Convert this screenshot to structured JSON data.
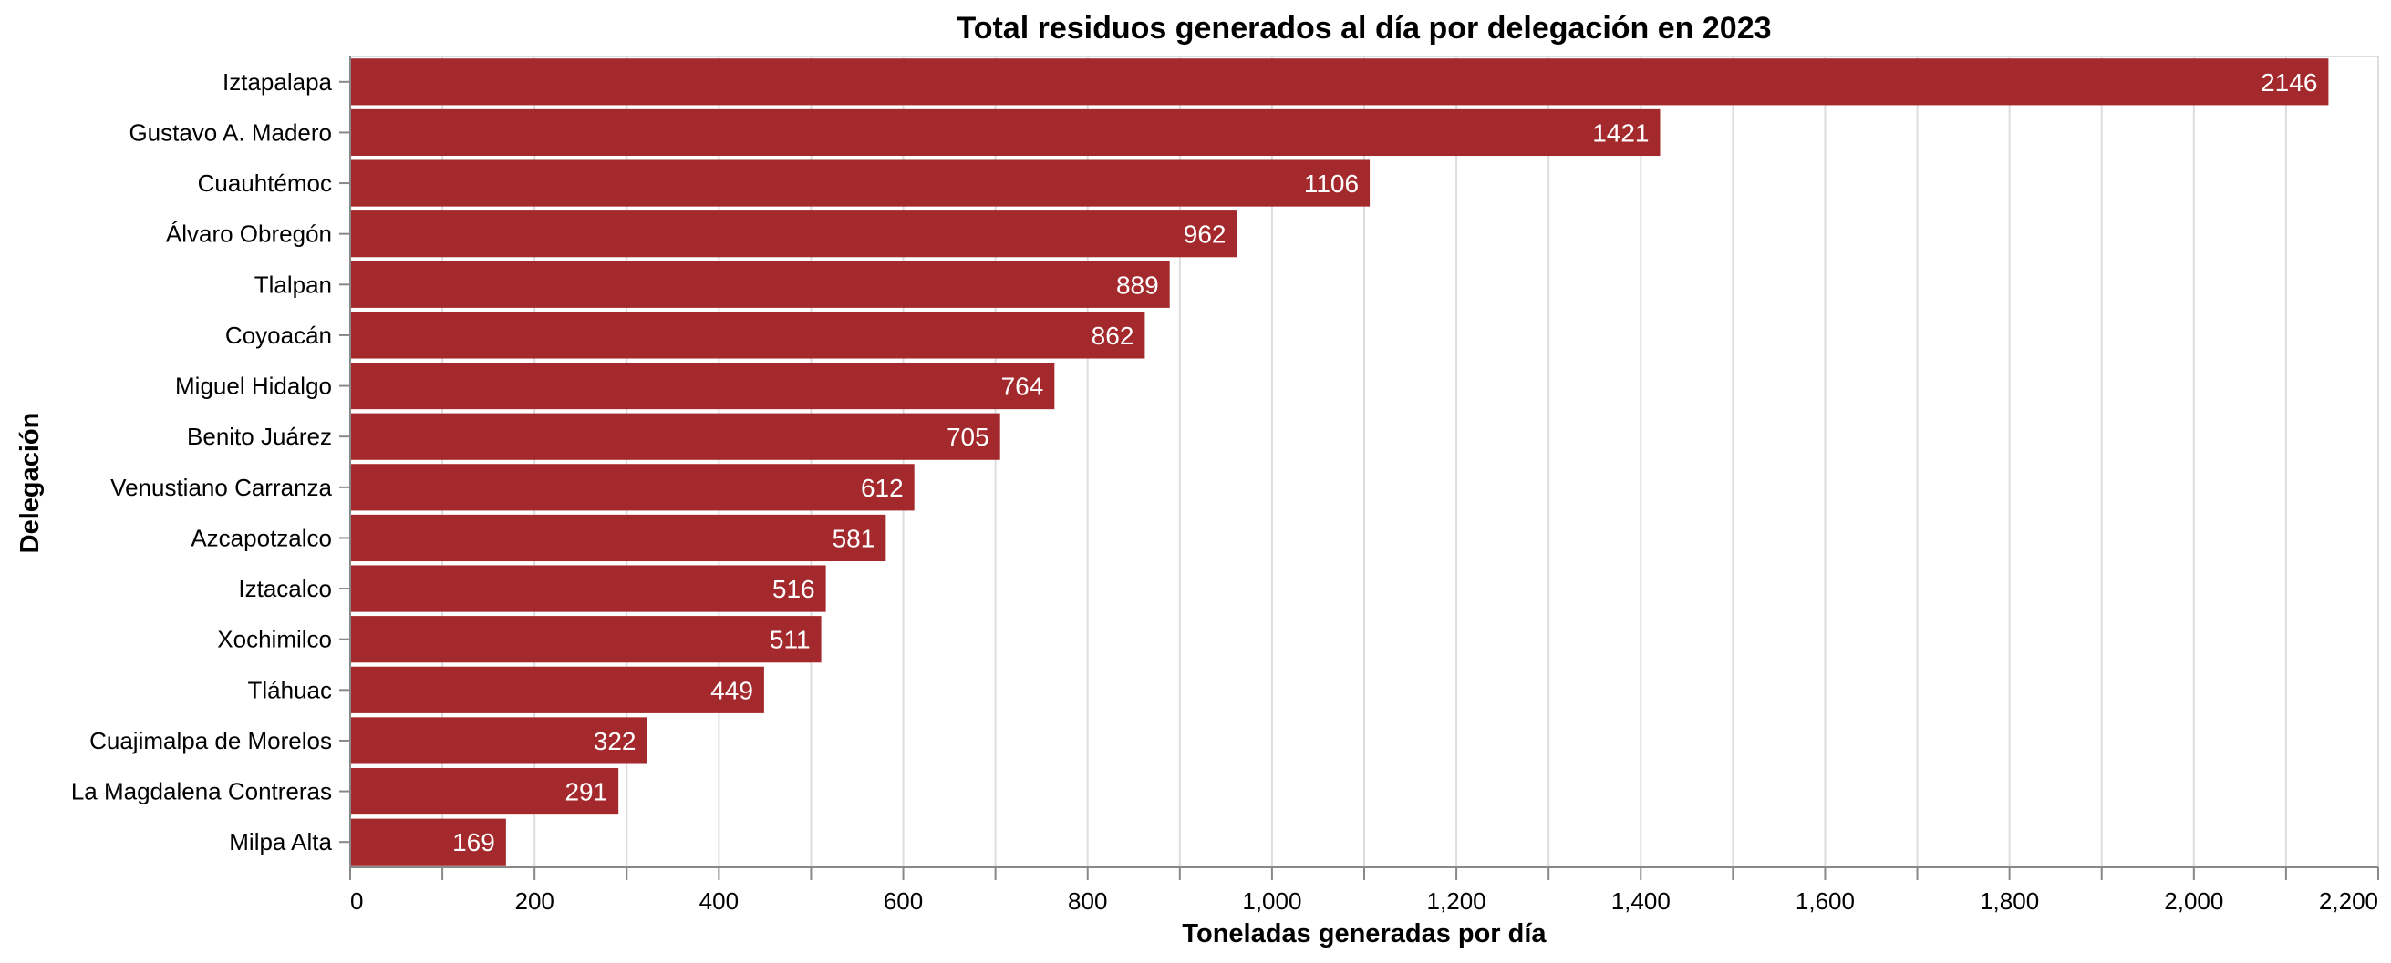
{
  "chart_data": {
    "type": "bar",
    "orientation": "horizontal",
    "title": "Total residuos generados al día por delegación en 2023",
    "xlabel": "Toneladas generadas por día",
    "ylabel": "Delegación",
    "xlim": [
      0,
      2200
    ],
    "x_ticks": [
      "0",
      "200",
      "400",
      "600",
      "800",
      "1,000",
      "1,200",
      "1,400",
      "1,600",
      "1,800",
      "2,000",
      "2,200"
    ],
    "grid": true,
    "bar_color": "#a4292c",
    "categories": [
      "Iztapalapa",
      "Gustavo A. Madero",
      "Cuauhtémoc",
      "Álvaro Obregón",
      "Tlalpan",
      "Coyoacán",
      "Miguel Hidalgo",
      "Benito Juárez",
      "Venustiano Carranza",
      "Azcapotzalco",
      "Iztacalco",
      "Xochimilco",
      "Tláhuac",
      "Cuajimalpa de Morelos",
      "La Magdalena Contreras",
      "Milpa Alta"
    ],
    "values": [
      2146,
      1421,
      1106,
      962,
      889,
      862,
      764,
      705,
      612,
      581,
      516,
      511,
      449,
      322,
      291,
      169
    ],
    "data_labels": [
      "2146",
      "1421",
      "1106",
      "962",
      "889",
      "862",
      "764",
      "705",
      "612",
      "581",
      "516",
      "511",
      "449",
      "322",
      "291",
      "169"
    ]
  }
}
